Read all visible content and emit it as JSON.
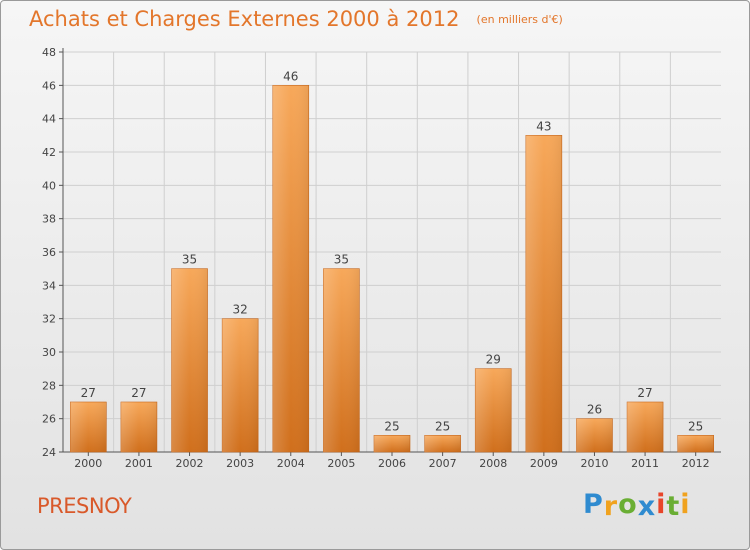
{
  "chart_data": {
    "type": "bar",
    "title": "Achats et Charges Externes 2000 à 2012",
    "subtitle": "(en milliers d'€)",
    "categories": [
      "2000",
      "2001",
      "2002",
      "2003",
      "2004",
      "2005",
      "2006",
      "2007",
      "2008",
      "2009",
      "2010",
      "2011",
      "2012"
    ],
    "values": [
      27,
      27,
      35,
      32,
      46,
      35,
      25,
      25,
      29,
      43,
      26,
      27,
      25
    ],
    "ylim": [
      24,
      48
    ],
    "yticks": [
      24,
      26,
      28,
      30,
      32,
      34,
      36,
      38,
      40,
      42,
      44,
      46,
      48
    ],
    "grid": true,
    "colors": {
      "bar_top": "#f7a85a",
      "bar_bottom": "#d06f1c",
      "text": "#444444",
      "title": "#e3762b"
    }
  },
  "commune": "PRESNOY",
  "logo": {
    "text": "Proxiti",
    "letters": [
      {
        "ch": "P",
        "color": "#2f8bd0"
      },
      {
        "ch": "r",
        "color": "#f0a21e"
      },
      {
        "ch": "o",
        "color": "#6aae34"
      },
      {
        "ch": "x",
        "color": "#2f8bd0"
      },
      {
        "ch": "i",
        "color": "#e8452a"
      },
      {
        "ch": "t",
        "color": "#6aae34"
      },
      {
        "ch": "i",
        "color": "#f0a21e"
      }
    ]
  }
}
